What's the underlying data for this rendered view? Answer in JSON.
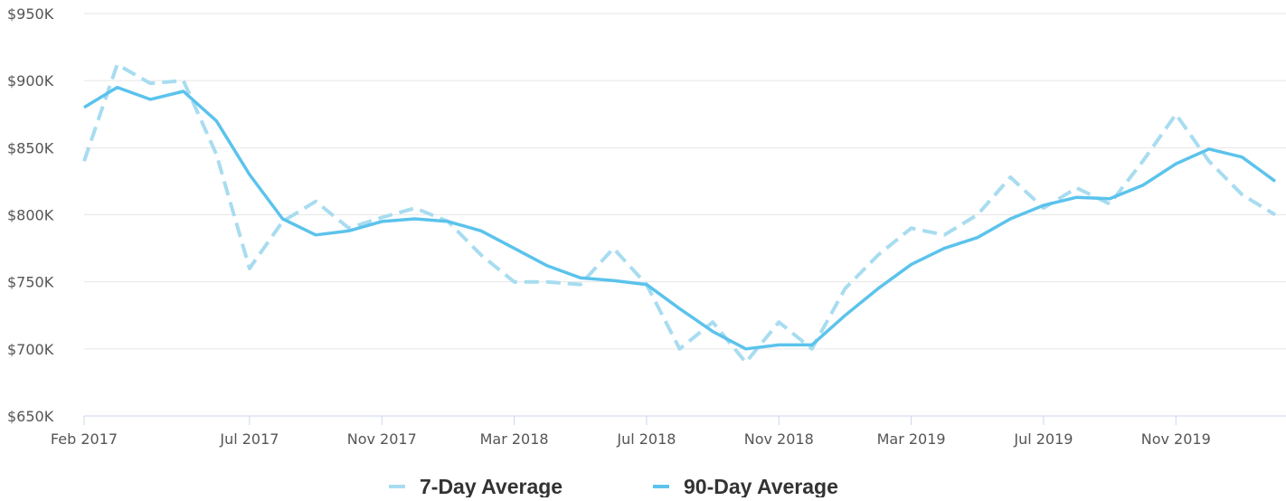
{
  "chart_data": {
    "type": "line",
    "x": [
      "2017-02",
      "2017-03",
      "2017-04",
      "2017-05",
      "2017-06",
      "2017-07",
      "2017-08",
      "2017-09",
      "2017-10",
      "2017-11",
      "2017-12",
      "2018-01",
      "2018-02",
      "2018-03",
      "2018-04",
      "2018-05",
      "2018-06",
      "2018-07",
      "2018-08",
      "2018-09",
      "2018-10",
      "2018-11",
      "2018-12",
      "2019-01",
      "2019-02",
      "2019-03",
      "2019-04",
      "2019-05",
      "2019-06",
      "2019-07",
      "2019-08",
      "2019-09",
      "2019-10",
      "2019-11",
      "2019-12",
      "2020-01",
      "2020-02"
    ],
    "series": [
      {
        "name": "7-Day Average",
        "color": "#a8dcf0",
        "dashed": true,
        "values": [
          840000,
          912000,
          898000,
          900000,
          845000,
          760000,
          795000,
          810000,
          790000,
          798000,
          805000,
          795000,
          770000,
          750000,
          750000,
          748000,
          775000,
          748000,
          700000,
          720000,
          690000,
          720000,
          700000,
          745000,
          770000,
          790000,
          785000,
          800000,
          828000,
          805000,
          820000,
          808000,
          840000,
          875000,
          840000,
          815000,
          800000
        ]
      },
      {
        "name": "90-Day Average",
        "color": "#5bc3ec",
        "dashed": false,
        "values": [
          880000,
          895000,
          886000,
          892000,
          870000,
          830000,
          797000,
          785000,
          788000,
          795000,
          797000,
          795000,
          788000,
          775000,
          762000,
          753000,
          751000,
          748000,
          730000,
          713000,
          700000,
          703000,
          703000,
          725000,
          745000,
          763000,
          775000,
          783000,
          797000,
          807000,
          813000,
          812000,
          822000,
          838000,
          849000,
          843000,
          825000
        ]
      }
    ],
    "xlim": [
      "2017-02",
      "2020-02"
    ],
    "xticks": [
      {
        "value": "2017-02",
        "label": "Feb 2017"
      },
      {
        "value": "2017-07",
        "label": "Jul 2017"
      },
      {
        "value": "2017-11",
        "label": "Nov 2017"
      },
      {
        "value": "2018-03",
        "label": "Mar 2018"
      },
      {
        "value": "2018-07",
        "label": "Jul 2018"
      },
      {
        "value": "2018-11",
        "label": "Nov 2018"
      },
      {
        "value": "2019-03",
        "label": "Mar 2019"
      },
      {
        "value": "2019-07",
        "label": "Jul 2019"
      },
      {
        "value": "2019-11",
        "label": "Nov 2019"
      }
    ],
    "ylim": [
      650000,
      950000
    ],
    "yticks": [
      {
        "value": 650000,
        "label": "$650K"
      },
      {
        "value": 700000,
        "label": "$700K"
      },
      {
        "value": 750000,
        "label": "$750K"
      },
      {
        "value": 800000,
        "label": "$800K"
      },
      {
        "value": 850000,
        "label": "$850K"
      },
      {
        "value": 900000,
        "label": "$900K"
      },
      {
        "value": 950000,
        "label": "$950K"
      }
    ],
    "grid": true,
    "legend": "bottom"
  }
}
